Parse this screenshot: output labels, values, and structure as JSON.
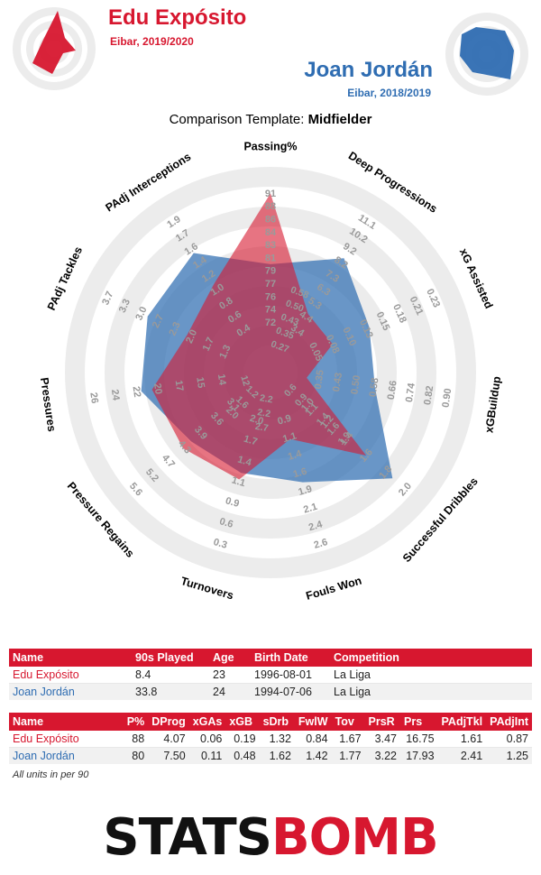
{
  "player1": {
    "name": "Edu Expósito",
    "subtitle": "Eibar, 2019/2020",
    "color": "#d7172f"
  },
  "player2": {
    "name": "Joan Jordán",
    "subtitle": "Eibar, 2018/2019",
    "color": "#2f6db2"
  },
  "template": {
    "label": "Comparison Template: ",
    "value": "Midfielder"
  },
  "chart_data": {
    "type": "radar",
    "axes": [
      {
        "label": "Passing%",
        "ticks": [
          "72",
          "74",
          "76",
          "77",
          "79",
          "81",
          "83",
          "84",
          "86",
          "88",
          "91"
        ],
        "min": 70,
        "max": 91
      },
      {
        "label": "Deep Progressions",
        "ticks": [
          "3.4",
          "4.4",
          "5.3",
          "6.3",
          "7.3",
          "8.2",
          "9.2",
          "10.2",
          "11.1"
        ],
        "min": 1.5,
        "max": 11.1
      },
      {
        "label": "xG Assisted",
        "ticks": [
          "0.05",
          "0.08",
          "0.10",
          "0.13",
          "0.15",
          "0.18",
          "0.21",
          "0.23"
        ],
        "min": 0.0,
        "max": 0.23
      },
      {
        "label": "xGBuildup",
        "ticks": [
          "0.35",
          "0.43",
          "0.50",
          "0.58",
          "0.66",
          "0.74",
          "0.82",
          "0.90"
        ],
        "min": 0.12,
        "max": 0.9
      },
      {
        "label": "Successful Dribbles",
        "ticks": [
          "1.0",
          "1.2",
          "1.4",
          "1.6",
          "1.8",
          "2.0"
        ],
        "min": 0.4,
        "max": 2.0
      },
      {
        "label": "Fouls Won",
        "ticks": [
          "0.9",
          "1.1",
          "1.4",
          "1.6",
          "1.9",
          "2.1",
          "2.4",
          "2.6"
        ],
        "min": 0.2,
        "max": 2.6
      },
      {
        "label": "Turnovers",
        "ticks": [
          "2.0",
          "1.7",
          "1.4",
          "1.1",
          "0.9",
          "0.6",
          "0.3"
        ],
        "min": 3.0,
        "max": 0.3
      },
      {
        "label": "Pressure Regains",
        "ticks": [
          "3.1",
          "3.6",
          "3.9",
          "4.3",
          "4.7",
          "5.2",
          "5.6"
        ],
        "min": 1.2,
        "max": 5.6
      },
      {
        "label": "Pressures",
        "ticks": [
          "14",
          "15",
          "17",
          "20",
          "22",
          "24",
          "26"
        ],
        "min": 6,
        "max": 26
      },
      {
        "label": "PAdj Tackles",
        "ticks": [
          "1.3",
          "1.7",
          "2.0",
          "2.3",
          "2.7",
          "3.0",
          "3.3",
          "3.7"
        ],
        "min": 0.3,
        "max": 3.7
      },
      {
        "label": "PAdj Interceptions",
        "ticks": [
          "0.4",
          "0.6",
          "0.8",
          "1.0",
          "1.2",
          "1.4",
          "1.6",
          "1.7",
          "1.9"
        ],
        "min": 0.0,
        "max": 1.9
      }
    ],
    "inner_ticks": [
      [
        "0.27",
        "0.35",
        "0.43",
        "0.50",
        "0.58"
      ],
      [
        "0.6",
        "0.9",
        "1.1",
        "1.4",
        "1.6",
        "1.9"
      ],
      [
        "2.2",
        "2.2",
        "2.7"
      ],
      [
        "1.2",
        "1.6",
        "2.0"
      ],
      [
        "12"
      ]
    ],
    "series": [
      {
        "name": "Edu Expósito",
        "color": "#d7172f",
        "values": [
          88,
          4.07,
          0.06,
          0.19,
          1.32,
          0.84,
          1.67,
          3.47,
          16.75,
          1.61,
          0.87
        ]
      },
      {
        "name": "Joan Jordán",
        "color": "#2f6db2",
        "values": [
          80,
          7.5,
          0.11,
          0.48,
          1.62,
          1.42,
          1.77,
          3.22,
          17.93,
          2.41,
          1.25
        ]
      }
    ]
  },
  "table1": {
    "headers": [
      "Name",
      "90s Played",
      "Age",
      "Birth Date",
      "Competition"
    ],
    "rows": [
      [
        "Edu Expósito",
        "8.4",
        "23",
        "1996-08-01",
        "La Liga"
      ],
      [
        "Joan Jordán",
        "33.8",
        "24",
        "1994-07-06",
        "La Liga"
      ]
    ]
  },
  "table2": {
    "headers": [
      "Name",
      "P%",
      "DProg",
      "xGAs",
      "xGB",
      "sDrb",
      "FwlW",
      "Tov",
      "PrsR",
      "Prs",
      "PAdjTkl",
      "PAdjInt"
    ],
    "rows": [
      [
        "Edu Expósito",
        "88",
        "4.07",
        "0.06",
        "0.19",
        "1.32",
        "0.84",
        "1.67",
        "3.47",
        "16.75",
        "1.61",
        "0.87"
      ],
      [
        "Joan Jordán",
        "80",
        "7.50",
        "0.11",
        "0.48",
        "1.62",
        "1.42",
        "1.77",
        "3.22",
        "17.93",
        "2.41",
        "1.25"
      ]
    ]
  },
  "units_note": "All units in per 90",
  "logo": {
    "left": "STATS",
    "right": "BOMB"
  }
}
